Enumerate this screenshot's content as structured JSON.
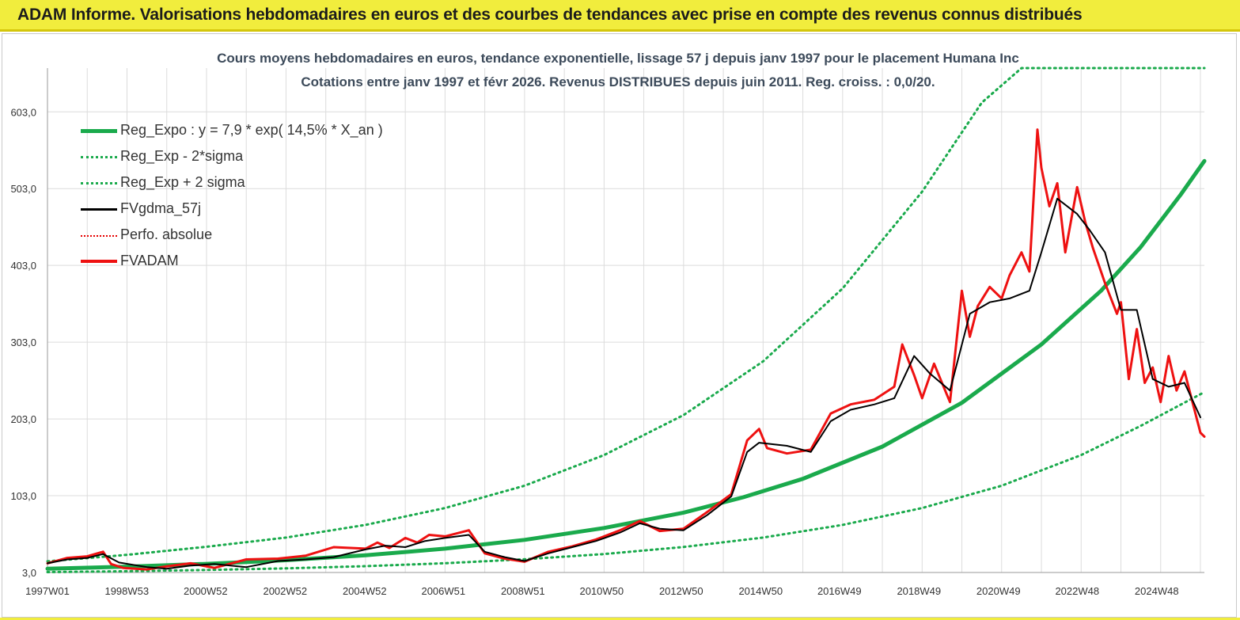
{
  "banner": {
    "title": "ADAM Informe. Valorisations hebdomadaires en euros et des courbes de tendances avec prise en compte des revenus connus distribués"
  },
  "colors": {
    "banner_bg": "#f1ed3d",
    "reg_expo": "#1aaa4c",
    "sigma": "#1aaa4c",
    "fvgdma": "#000000",
    "perfo": "#e60000",
    "fvadam": "#ee1111"
  },
  "chart_data": {
    "type": "line",
    "title": "Cours moyens hebdomadaires en euros, tendance exponentielle, lissage 57 j depuis janv 1997 pour le placement Humana Inc",
    "subtitle": "Cotations entre janv 1997 et févr 2026. Revenus DISTRIBUES depuis juin 2011. Reg. croiss. : 0,0/20.",
    "xlabel": "",
    "ylabel": "",
    "x_range": [
      "1997W01",
      "2026W06"
    ],
    "ylim": [
      3,
      660
    ],
    "y_ticks": [
      "3,0",
      "103,0",
      "203,0",
      "303,0",
      "403,0",
      "503,0",
      "603,0"
    ],
    "x_ticks": [
      "1997W01",
      "1998W53",
      "2000W52",
      "2002W52",
      "2004W52",
      "2006W51",
      "2008W51",
      "2010W50",
      "2012W50",
      "2014W50",
      "2016W49",
      "2018W49",
      "2020W49",
      "2022W48",
      "2024W48"
    ],
    "grid": true,
    "legend_position": "top-left",
    "legend": [
      "Reg_Expo : y = 7,9 * exp( 14,5% *  X_an )",
      "Reg_Exp - 2*sigma",
      "Reg_Exp + 2 sigma",
      "FVgdma_57j",
      "Perfo. absolue",
      "FVADAM"
    ],
    "series": [
      {
        "name": "Reg_Expo : y = 7,9 * exp( 14,5% *  X_an )",
        "style": "solid-thick",
        "x": [
          1997.0,
          1999.0,
          2001.0,
          2003.0,
          2005.0,
          2007.0,
          2009.0,
          2011.0,
          2013.0,
          2014.5,
          2016.0,
          2018.0,
          2020.0,
          2022.0,
          2023.5,
          2024.5,
          2025.5,
          2026.1
        ],
        "values": [
          7.9,
          10.6,
          14.2,
          19.0,
          25.4,
          34.0,
          45.5,
          61.0,
          81.0,
          101.0,
          125.0,
          167.0,
          224.0,
          300.0,
          370.0,
          427.0,
          495.0,
          539.0
        ]
      },
      {
        "name": "Reg_Exp - 2*sigma",
        "style": "dotted",
        "x": [
          1997.0,
          1999.0,
          2001.0,
          2003.0,
          2005.0,
          2007.0,
          2009.0,
          2011.0,
          2013.0,
          2015.0,
          2017.0,
          2019.0,
          2021.0,
          2023.0,
          2024.5,
          2026.1
        ],
        "values": [
          3.5,
          4.7,
          6.3,
          8.4,
          11.3,
          15.1,
          20.2,
          27.0,
          36.2,
          48.5,
          65.0,
          87.0,
          116.0,
          156.0,
          194.0,
          238.0
        ]
      },
      {
        "name": "Reg_Exp + 2 sigma",
        "style": "dotted",
        "x": [
          1997.0,
          1999.0,
          2001.0,
          2003.0,
          2005.0,
          2007.0,
          2009.0,
          2011.0,
          2013.0,
          2015.0,
          2017.0,
          2019.0,
          2020.5,
          2021.5,
          2022.0,
          2026.1
        ],
        "values": [
          17.5,
          26.0,
          36.5,
          48.5,
          65.0,
          87.0,
          116.0,
          156.0,
          208.0,
          278.0,
          373.0,
          499.0,
          615.0,
          700.0,
          700.0,
          700.0
        ]
      },
      {
        "name": "FVgdma_57j",
        "style": "solid",
        "x": [
          1997.0,
          1997.5,
          1998.0,
          1998.4,
          1998.8,
          1999.5,
          2000.0,
          2000.6,
          2001.2,
          2002.0,
          2002.8,
          2003.5,
          2004.2,
          2005.0,
          2005.5,
          2006.0,
          2006.5,
          2007.0,
          2007.6,
          2008.0,
          2008.5,
          2009.0,
          2009.6,
          2010.2,
          2010.8,
          2011.4,
          2011.9,
          2012.4,
          2013.0,
          2013.6,
          2014.2,
          2014.6,
          2014.9,
          2015.6,
          2016.2,
          2016.7,
          2017.2,
          2017.8,
          2018.3,
          2018.8,
          2019.2,
          2019.7,
          2020.2,
          2020.7,
          2021.2,
          2021.7,
          2022.0,
          2022.4,
          2022.9,
          2023.2,
          2023.6,
          2024.0,
          2024.4,
          2024.8,
          2025.2,
          2025.6,
          2026.0
        ],
        "values": [
          15,
          20,
          22,
          27,
          16,
          10,
          8,
          12,
          14,
          10,
          18,
          20,
          23,
          33,
          38,
          36,
          44,
          48,
          52,
          30,
          23,
          18,
          28,
          36,
          44,
          55,
          67,
          60,
          58,
          78,
          102,
          160,
          172,
          168,
          160,
          200,
          215,
          222,
          230,
          285,
          262,
          240,
          340,
          355,
          360,
          370,
          420,
          490,
          470,
          450,
          420,
          345,
          345,
          255,
          245,
          250,
          205
        ]
      },
      {
        "name": "FVADAM",
        "style": "solid-red",
        "x": [
          1997.0,
          1997.5,
          1998.0,
          1998.4,
          1998.6,
          1998.9,
          1999.5,
          2000.0,
          2000.6,
          2001.2,
          2002.0,
          2002.8,
          2003.5,
          2004.2,
          2005.0,
          2005.3,
          2005.6,
          2006.0,
          2006.3,
          2006.6,
          2007.0,
          2007.6,
          2008.0,
          2008.5,
          2009.0,
          2009.6,
          2010.2,
          2010.8,
          2011.4,
          2011.9,
          2012.4,
          2013.0,
          2013.6,
          2014.2,
          2014.6,
          2014.9,
          2015.1,
          2015.6,
          2016.2,
          2016.7,
          2017.2,
          2017.8,
          2018.3,
          2018.5,
          2018.8,
          2019.0,
          2019.3,
          2019.7,
          2020.0,
          2020.2,
          2020.4,
          2020.7,
          2021.0,
          2021.2,
          2021.5,
          2021.7,
          2021.9,
          2022.0,
          2022.2,
          2022.4,
          2022.6,
          2022.9,
          2023.1,
          2023.3,
          2023.6,
          2023.9,
          2024.0,
          2024.2,
          2024.4,
          2024.6,
          2024.8,
          2025.0,
          2025.2,
          2025.4,
          2025.6,
          2025.8,
          2026.0,
          2026.1
        ],
        "values": [
          15,
          22,
          24,
          30,
          14,
          9,
          7,
          11,
          15,
          9,
          20,
          21,
          25,
          36,
          34,
          42,
          35,
          48,
          42,
          52,
          50,
          58,
          28,
          21,
          17,
          30,
          37,
          46,
          58,
          70,
          57,
          60,
          82,
          105,
          175,
          190,
          165,
          158,
          163,
          210,
          222,
          228,
          245,
          300,
          260,
          230,
          275,
          225,
          370,
          310,
          350,
          375,
          360,
          390,
          420,
          395,
          580,
          530,
          480,
          510,
          420,
          505,
          460,
          425,
          380,
          340,
          355,
          255,
          320,
          250,
          270,
          225,
          285,
          240,
          265,
          225,
          185,
          180
        ]
      }
    ]
  }
}
